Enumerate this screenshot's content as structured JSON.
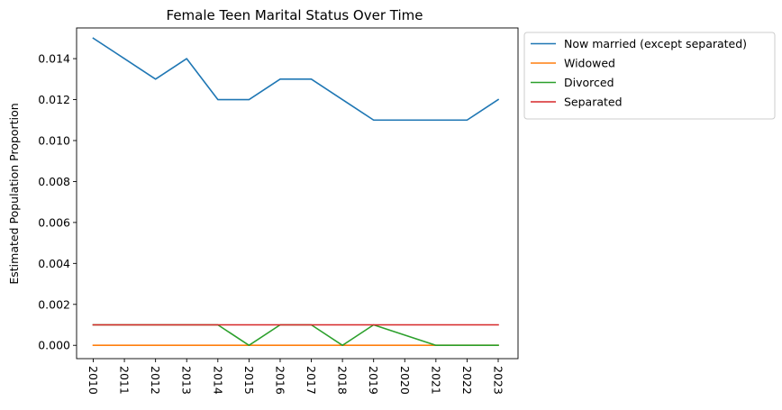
{
  "chart_data": {
    "type": "line",
    "title": "Female Teen Marital Status Over Time",
    "xlabel": "",
    "ylabel": "Estimated Population Proportion",
    "x": [
      "2010",
      "2011",
      "2012",
      "2013",
      "2014",
      "2015",
      "2016",
      "2017",
      "2018",
      "2019",
      "2020",
      "2021",
      "2022",
      "2023"
    ],
    "ylim": [
      -0.00065,
      0.0155
    ],
    "yticks": [
      "0.000",
      "0.002",
      "0.004",
      "0.006",
      "0.008",
      "0.010",
      "0.012",
      "0.014"
    ],
    "ytick_values": [
      0,
      0.002,
      0.004,
      0.006,
      0.008,
      0.01,
      0.012,
      0.014
    ],
    "grid": false,
    "legend_position": "outside top-right",
    "series": [
      {
        "name": "Now married (except separated)",
        "color": "#1f77b4",
        "values": [
          0.015,
          0.014,
          0.013,
          0.014,
          0.012,
          0.012,
          0.013,
          0.013,
          0.012,
          0.011,
          0.011,
          0.011,
          0.011,
          0.012
        ]
      },
      {
        "name": "Widowed",
        "color": "#ff7f0e",
        "values": [
          0,
          0,
          0,
          0,
          0,
          0,
          0,
          0,
          0,
          0,
          0,
          0,
          0,
          0
        ]
      },
      {
        "name": "Divorced",
        "color": "#2ca02c",
        "values": [
          0.001,
          0.001,
          0.001,
          0.001,
          0.001,
          0,
          0.001,
          0.001,
          0,
          0.001,
          0.0005,
          0,
          0,
          0
        ]
      },
      {
        "name": "Separated",
        "color": "#d62728",
        "values": [
          0.001,
          0.001,
          0.001,
          0.001,
          0.001,
          0.001,
          0.001,
          0.001,
          0.001,
          0.001,
          0.001,
          0.001,
          0.001,
          0.001
        ]
      }
    ]
  }
}
